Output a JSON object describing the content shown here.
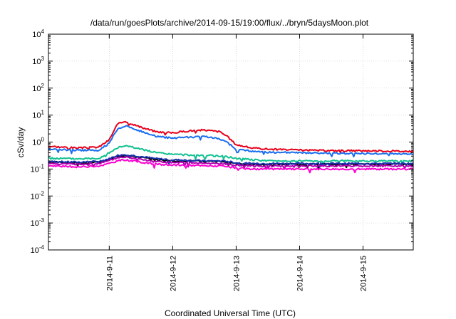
{
  "chart_data": {
    "type": "line",
    "title": "/data/run/goesPlots/archive/2014-09-15/19:00/flux/../bryn/5daysMoon.plot",
    "xlabel": "Coordinated Universal Time (UTC)",
    "ylabel": "cSv/day",
    "yscale": "log",
    "ylim": [
      0.0001,
      10000
    ],
    "ytick_mantissa": "10",
    "ytick_exponents": [
      "-4",
      "-3",
      "-2",
      "-1",
      "0",
      "1",
      "2",
      "3",
      "4"
    ],
    "xlim": [
      "2014-09-10T01:00",
      "2014-09-15T19:00"
    ],
    "xtick_labels": [
      "2014-9-11",
      "2014-9-12",
      "2014-9-13",
      "2014-9-14",
      "2014-9-15"
    ],
    "xtick_dates": [
      "2014-09-11T00:00",
      "2014-09-12T00:00",
      "2014-09-13T00:00",
      "2014-09-14T00:00",
      "2014-09-15T00:00"
    ],
    "grid": true,
    "x": [
      "2014-09-10T01:00",
      "2014-09-10T12:00",
      "2014-09-10T20:00",
      "2014-09-11T00:00",
      "2014-09-11T03:00",
      "2014-09-11T06:00",
      "2014-09-11T12:00",
      "2014-09-11T18:00",
      "2014-09-12T00:00",
      "2014-09-12T06:00",
      "2014-09-12T12:00",
      "2014-09-12T18:00",
      "2014-09-12T21:00",
      "2014-09-13T00:00",
      "2014-09-13T06:00",
      "2014-09-13T12:00",
      "2014-09-14T00:00",
      "2014-09-14T12:00",
      "2014-09-15T00:00",
      "2014-09-15T12:00",
      "2014-09-15T19:00"
    ],
    "series": [
      {
        "color": "#e8001a",
        "values": [
          0.7,
          0.6,
          0.65,
          1.2,
          4.5,
          6.0,
          3.5,
          2.4,
          2.2,
          2.6,
          2.8,
          2.4,
          1.5,
          0.8,
          0.6,
          0.55,
          0.5,
          0.48,
          0.48,
          0.46,
          0.45
        ]
      },
      {
        "color": "#1a6ef0",
        "values": [
          0.55,
          0.5,
          0.5,
          0.9,
          3.0,
          4.0,
          2.5,
          1.6,
          1.4,
          1.5,
          1.6,
          1.3,
          0.9,
          0.55,
          0.45,
          0.42,
          0.4,
          0.38,
          0.38,
          0.37,
          0.36
        ]
      },
      {
        "color": "#10c090",
        "values": [
          0.25,
          0.24,
          0.25,
          0.4,
          0.6,
          0.75,
          0.55,
          0.4,
          0.35,
          0.33,
          0.32,
          0.3,
          0.28,
          0.25,
          0.22,
          0.2,
          0.2,
          0.2,
          0.2,
          0.2,
          0.2
        ]
      },
      {
        "color": "#000000",
        "values": [
          0.18,
          0.17,
          0.18,
          0.22,
          0.3,
          0.32,
          0.27,
          0.22,
          0.2,
          0.2,
          0.19,
          0.19,
          0.18,
          0.16,
          0.15,
          0.15,
          0.15,
          0.15,
          0.15,
          0.15,
          0.15
        ]
      },
      {
        "color": "#1a30b0",
        "values": [
          0.19,
          0.18,
          0.19,
          0.24,
          0.32,
          0.35,
          0.29,
          0.24,
          0.22,
          0.21,
          0.2,
          0.2,
          0.19,
          0.17,
          0.16,
          0.16,
          0.16,
          0.16,
          0.16,
          0.16,
          0.16
        ]
      },
      {
        "color": "#b000b0",
        "values": [
          0.16,
          0.15,
          0.16,
          0.2,
          0.26,
          0.28,
          0.23,
          0.19,
          0.17,
          0.17,
          0.16,
          0.16,
          0.15,
          0.14,
          0.13,
          0.13,
          0.13,
          0.13,
          0.13,
          0.13,
          0.13
        ]
      },
      {
        "color": "#ff00d0",
        "values": [
          0.13,
          0.12,
          0.13,
          0.16,
          0.2,
          0.22,
          0.18,
          0.15,
          0.14,
          0.14,
          0.13,
          0.13,
          0.12,
          0.11,
          0.1,
          0.1,
          0.1,
          0.1,
          0.1,
          0.1,
          0.1
        ]
      }
    ]
  }
}
